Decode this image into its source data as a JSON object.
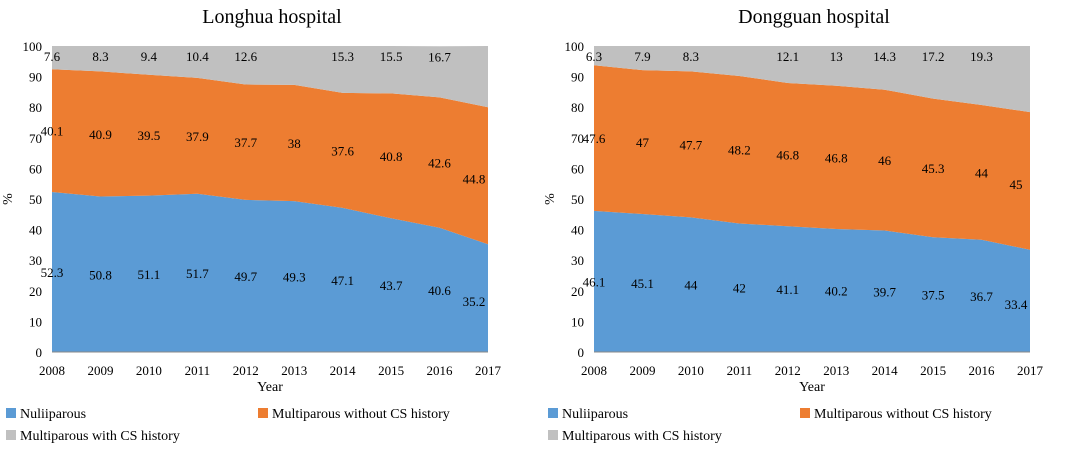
{
  "colors": {
    "nulliparous": "#5B9BD5",
    "multi_no_cs": "#ED7D31",
    "multi_cs": "#C0C0C0"
  },
  "chart_data": [
    {
      "type": "area",
      "stacked": true,
      "title": "Longhua hospital",
      "xlabel": "Year",
      "ylabel": "%",
      "ylim": [
        0,
        100
      ],
      "yticks": [
        "0",
        "10",
        "20",
        "30",
        "40",
        "50",
        "60",
        "70",
        "80",
        "90",
        "100"
      ],
      "categories": [
        "2008",
        "2009",
        "2010",
        "2011",
        "2012",
        "2013",
        "2014",
        "2015",
        "2016",
        "2017"
      ],
      "series": [
        {
          "name": "Nuliiparous",
          "values": [
            52.3,
            50.8,
            51.1,
            51.7,
            49.7,
            49.3,
            47.1,
            43.7,
            40.6,
            35.2
          ],
          "labels": [
            "52.3",
            "50.8",
            "51.1",
            "51.7",
            "49.7",
            "49.3",
            "47.1",
            "43.7",
            "40.6",
            "35.2"
          ]
        },
        {
          "name": "Multiparous without CS history",
          "values": [
            40.1,
            40.9,
            39.5,
            37.9,
            37.7,
            38,
            37.6,
            40.8,
            42.6,
            44.8
          ],
          "labels": [
            "40.1",
            "40.9",
            "39.5",
            "37.9",
            "37.7",
            "38",
            "37.6",
            "40.8",
            "42.6",
            "44.8"
          ]
        },
        {
          "name": "Multiparous with CS history",
          "values": [
            7.6,
            8.3,
            9.4,
            10.4,
            12.6,
            12.7,
            15.3,
            15.5,
            16.7,
            20.0
          ],
          "labels": [
            "7.6",
            "8.3",
            "9.4",
            "10.4",
            "12.6",
            "",
            "15.3",
            "15.5",
            "16.7",
            ""
          ]
        }
      ],
      "legend": [
        "Nuliiparous",
        "Multiparous without CS history",
        "Multiparous with CS history"
      ]
    },
    {
      "type": "area",
      "stacked": true,
      "title": "Dongguan hospital",
      "xlabel": "Year",
      "ylabel": "%",
      "ylim": [
        0,
        100
      ],
      "yticks": [
        "0",
        "10",
        "20",
        "30",
        "40",
        "50",
        "60",
        "70",
        "80",
        "90",
        "100"
      ],
      "categories": [
        "2008",
        "2009",
        "2010",
        "2011",
        "2012",
        "2013",
        "2014",
        "2015",
        "2016",
        "2017"
      ],
      "series": [
        {
          "name": "Nuliiparous",
          "values": [
            46.1,
            45.1,
            44,
            42,
            41.1,
            40.2,
            39.7,
            37.5,
            36.7,
            33.4
          ],
          "labels": [
            "46.1",
            "45.1",
            "44",
            "42",
            "41.1",
            "40.2",
            "39.7",
            "37.5",
            "36.7",
            "33.4"
          ]
        },
        {
          "name": "Multiparous without CS history",
          "values": [
            47.6,
            47,
            47.7,
            48.2,
            46.8,
            46.8,
            46,
            45.3,
            44,
            45
          ],
          "labels": [
            "47.6",
            "47",
            "47.7",
            "48.2",
            "46.8",
            "46.8",
            "46",
            "45.3",
            "44",
            "45"
          ]
        },
        {
          "name": "Multiparous with CS history",
          "values": [
            6.3,
            7.9,
            8.3,
            9.8,
            12.1,
            13,
            14.3,
            17.2,
            19.3,
            21.6
          ],
          "labels": [
            "6.3",
            "7.9",
            "8.3",
            "",
            "12.1",
            "13",
            "14.3",
            "17.2",
            "19.3",
            ""
          ]
        }
      ],
      "legend": [
        "Nuliiparous",
        "Multiparous without CS history",
        "Multiparous with CS history"
      ]
    }
  ]
}
